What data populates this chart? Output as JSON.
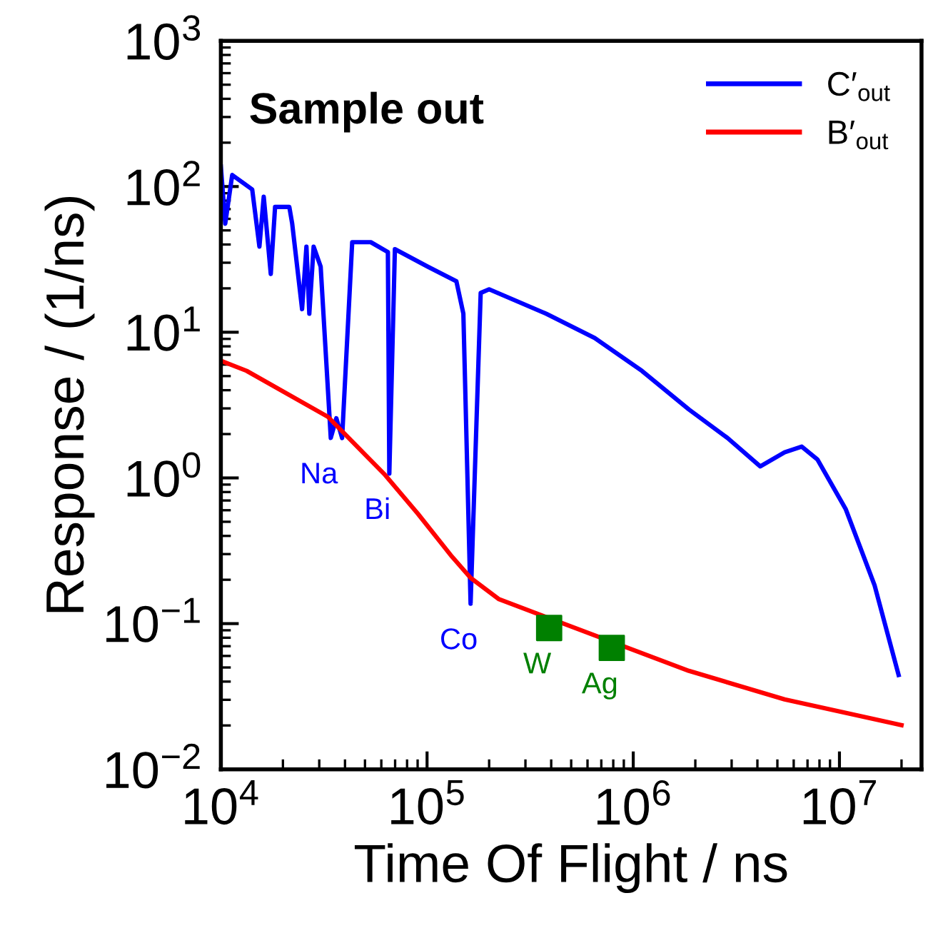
{
  "chart_data": {
    "type": "line",
    "title": "Sample out",
    "xlabel": "Time Of Flight / ns",
    "ylabel": "Response / (1/ns)",
    "log": "xy",
    "xlim": [
      10000,
      25000000
    ],
    "ylim": [
      0.01,
      1000
    ],
    "xticks": [
      {
        "value": 10000,
        "label": "10$^{4}$"
      },
      {
        "value": 100000,
        "label": "10$^{5}$"
      },
      {
        "value": 1000000,
        "label": "10$^{6}$"
      },
      {
        "value": 10000000,
        "label": "10$^{7}$"
      }
    ],
    "yticks": [
      {
        "value": 0.01,
        "label": "10$^{−2}$"
      },
      {
        "value": 0.1,
        "label": "10$^{−1}$"
      },
      {
        "value": 1,
        "label": "10$^{0}$"
      },
      {
        "value": 10,
        "label": "10$^{1}$"
      },
      {
        "value": 100,
        "label": "10$^{2}$"
      },
      {
        "value": 1000,
        "label": "10$^{3}$"
      }
    ],
    "grid": false,
    "legend": "top right",
    "marker": "none",
    "line_style": "solid",
    "series": [
      {
        "name": "C′$_{out}$",
        "color": "#0000ff",
        "x": [
          10000,
          10500,
          11350,
          14190,
          15380,
          16140,
          17460,
          18320,
          21480,
          22180,
          24770,
          26000,
          26850,
          28180,
          30480,
          34120,
          36310,
          38730,
          43350,
          53330,
          64570,
          65610,
          69820,
          100700,
          138700,
          150000,
          162600,
          182000,
          200000,
          378400,
          650100,
          1102000,
          1862000,
          2864000,
          4130000,
          5420000,
          6561000,
          7816000,
          10740000,
          14790000,
          19360000
        ],
        "values": [
          137,
          55.6,
          120,
          95.5,
          38.7,
          85.1,
          25.1,
          72.4,
          72.4,
          55.6,
          14.4,
          38.7,
          13.4,
          38.7,
          28.2,
          1.88,
          2.57,
          1.88,
          41.5,
          41.5,
          35.5,
          1.07,
          37.2,
          28.2,
          22.4,
          13.4,
          0.137,
          18.6,
          19.7,
          13.4,
          9.12,
          5.43,
          2.95,
          1.88,
          1.2,
          1.5,
          1.64,
          1.34,
          0.608,
          0.184,
          0.0444
        ]
      },
      {
        "name": "B′$_{out}$",
        "color": "#ff0000",
        "x": [
          10000,
          13330,
          33040,
          62520,
          90160,
          132100,
          162600,
          223400,
          1862000,
          5420000,
          20000000
        ],
        "values": [
          6.37,
          5.43,
          2.63,
          1.05,
          0.569,
          0.288,
          0.206,
          0.147,
          0.0474,
          0.0302,
          0.0201
        ]
      },
      {
        "type": "scatter",
        "marker": "square",
        "color": "#008000",
        "x": [
          390900,
          787000
        ],
        "values": [
          0.0933,
          0.0681
        ]
      }
    ],
    "annotations": [
      {
        "text": "Na",
        "x": 34120,
        "y": 1.88
      },
      {
        "text": "Bi",
        "x": 65610,
        "y": 1.07
      },
      {
        "text": "Co",
        "x": 162600,
        "y": 0.137
      },
      {
        "text": "W",
        "x": 390900,
        "y": 0.0933
      },
      {
        "text": "Ag",
        "x": 787000,
        "y": 0.0681
      }
    ]
  }
}
